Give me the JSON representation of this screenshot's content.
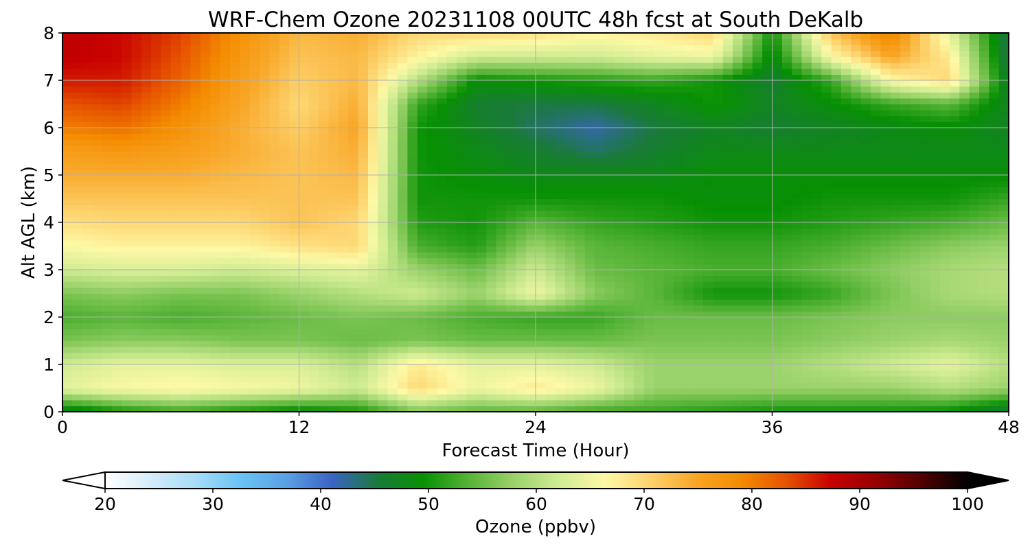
{
  "chart_data": {
    "type": "heatmap",
    "title": "WRF-Chem Ozone  20231108 00UTC 48h fcst at South DeKalb",
    "xlabel": "Forecast Time (Hour)",
    "ylabel": "Alt AGL (km)",
    "xlim": [
      0,
      48
    ],
    "ylim": [
      0,
      8
    ],
    "x_ticks": [
      0,
      12,
      24,
      36,
      48
    ],
    "y_ticks": [
      0,
      1,
      2,
      3,
      4,
      5,
      6,
      7,
      8
    ],
    "grid": true,
    "colorbar": {
      "label": "Ozone  (ppbv)",
      "min": 20,
      "max": 100,
      "ticks": [
        20,
        30,
        40,
        50,
        60,
        70,
        80,
        90,
        100
      ],
      "extend": "both",
      "placement": "bottom",
      "colors": [
        "#ffffff",
        "#d5ecfa",
        "#a6dcf8",
        "#68c3f5",
        "#5aa0e3",
        "#3a63c6",
        "#1a7a3a",
        "#079003",
        "#55b336",
        "#9ad26a",
        "#d0ec92",
        "#fdf9a6",
        "#fdd36e",
        "#f8a627",
        "#f48c00",
        "#e65200",
        "#c80000",
        "#960000",
        "#500000",
        "#000000"
      ]
    },
    "x": [
      0,
      3,
      6,
      9,
      12,
      15,
      18,
      21,
      24,
      27,
      30,
      33,
      36,
      39,
      42,
      45,
      48
    ],
    "y": [
      0,
      0.5,
      1,
      1.5,
      2,
      2.5,
      3,
      3.5,
      4,
      4.5,
      5,
      5.5,
      6,
      6.5,
      7,
      7.5,
      8
    ],
    "z": [
      [
        46,
        50,
        52,
        50,
        48,
        50,
        56,
        54,
        54,
        52,
        52,
        51,
        50,
        50,
        50,
        49,
        45
      ],
      [
        64,
        66,
        67,
        66,
        65,
        62,
        70,
        65,
        68,
        65,
        58,
        58,
        58,
        58,
        58,
        60,
        58
      ],
      [
        62,
        64,
        64,
        63,
        63,
        60,
        68,
        64,
        64,
        62,
        58,
        58,
        58,
        60,
        62,
        64,
        60
      ],
      [
        56,
        57,
        57,
        56,
        56,
        55,
        56,
        55,
        55,
        55,
        56,
        56,
        56,
        57,
        58,
        59,
        58
      ],
      [
        53,
        54,
        53,
        54,
        55,
        56,
        55,
        53,
        52,
        52,
        55,
        55,
        55,
        56,
        57,
        57,
        57
      ],
      [
        56,
        57,
        56,
        56,
        58,
        60,
        62,
        58,
        65,
        57,
        54,
        50,
        50,
        52,
        56,
        59,
        60
      ],
      [
        62,
        63,
        63,
        62,
        63,
        64,
        58,
        55,
        62,
        55,
        54,
        53,
        53,
        55,
        57,
        59,
        60
      ],
      [
        66,
        67,
        67,
        67,
        69,
        70,
        53,
        51,
        58,
        54,
        53,
        52,
        52,
        53,
        55,
        57,
        58
      ],
      [
        69,
        70,
        70,
        70,
        72,
        70,
        51,
        50,
        54,
        52,
        51,
        50,
        50,
        51,
        52,
        53,
        55
      ],
      [
        72,
        72,
        72,
        72,
        72,
        72,
        50,
        50,
        50,
        50,
        50,
        49,
        49,
        50,
        50,
        50,
        52
      ],
      [
        74,
        74,
        74,
        73,
        72,
        73,
        50,
        49,
        48,
        48,
        48,
        49,
        49,
        49,
        49,
        49,
        49
      ],
      [
        76,
        77,
        76,
        74,
        72,
        74,
        50,
        48,
        46,
        44,
        46,
        48,
        48,
        48,
        48,
        48,
        48
      ],
      [
        80,
        81,
        78,
        74,
        71,
        75,
        50,
        47,
        44,
        42,
        45,
        47,
        46,
        47,
        48,
        49,
        47
      ],
      [
        83,
        84,
        80,
        75,
        70,
        74,
        52,
        46,
        45,
        45,
        47,
        50,
        47,
        49,
        52,
        54,
        47
      ],
      [
        86,
        86,
        82,
        76,
        71,
        73,
        60,
        49,
        50,
        51,
        52,
        50,
        46,
        52,
        66,
        70,
        46
      ],
      [
        88,
        87,
        83,
        77,
        72,
        73,
        67,
        62,
        62,
        62,
        64,
        65,
        48,
        66,
        75,
        68,
        44
      ],
      [
        88,
        87,
        84,
        78,
        73,
        74,
        70,
        70,
        69,
        67,
        68,
        70,
        50,
        72,
        80,
        64,
        44
      ]
    ]
  }
}
